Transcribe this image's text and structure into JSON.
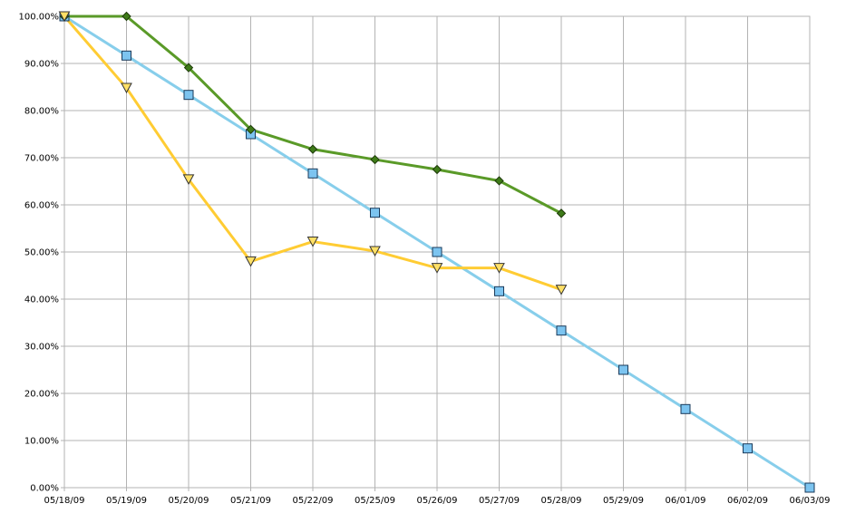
{
  "chart_data": {
    "type": "line",
    "title": "",
    "xlabel": "",
    "ylabel": "",
    "categories": [
      "05/18/09",
      "05/19/09",
      "05/20/09",
      "05/21/09",
      "05/22/09",
      "05/25/09",
      "05/26/09",
      "05/27/09",
      "05/28/09",
      "05/29/09",
      "06/01/09",
      "06/02/09",
      "06/03/09"
    ],
    "y_ticks": [
      "0.00%",
      "10.00%",
      "20.00%",
      "30.00%",
      "40.00%",
      "50.00%",
      "60.00%",
      "70.00%",
      "80.00%",
      "90.00%",
      "100.00%"
    ],
    "ylim": [
      0,
      100
    ],
    "grid": true,
    "legend": "none",
    "series": [
      {
        "marker": "square",
        "color": "#87CEEB",
        "marker_fill": "#7CC4F0",
        "values": [
          100,
          91.67,
          83.33,
          75.0,
          66.67,
          58.33,
          50.0,
          41.67,
          33.33,
          25.0,
          16.67,
          8.33,
          0.0
        ]
      },
      {
        "marker": "diamond",
        "color": "#5A9A28",
        "marker_fill": "#3E7A18",
        "values": [
          100,
          100,
          89.1,
          76.0,
          71.8,
          69.6,
          67.5,
          65.1,
          58.2,
          null,
          null,
          null,
          null
        ]
      },
      {
        "marker": "triangle-down",
        "color": "#FFCC33",
        "marker_fill": "#FFE066",
        "values": [
          100,
          84.8,
          65.4,
          48.0,
          52.2,
          50.2,
          46.6,
          46.6,
          42.0,
          null,
          null,
          null,
          null
        ]
      }
    ]
  }
}
